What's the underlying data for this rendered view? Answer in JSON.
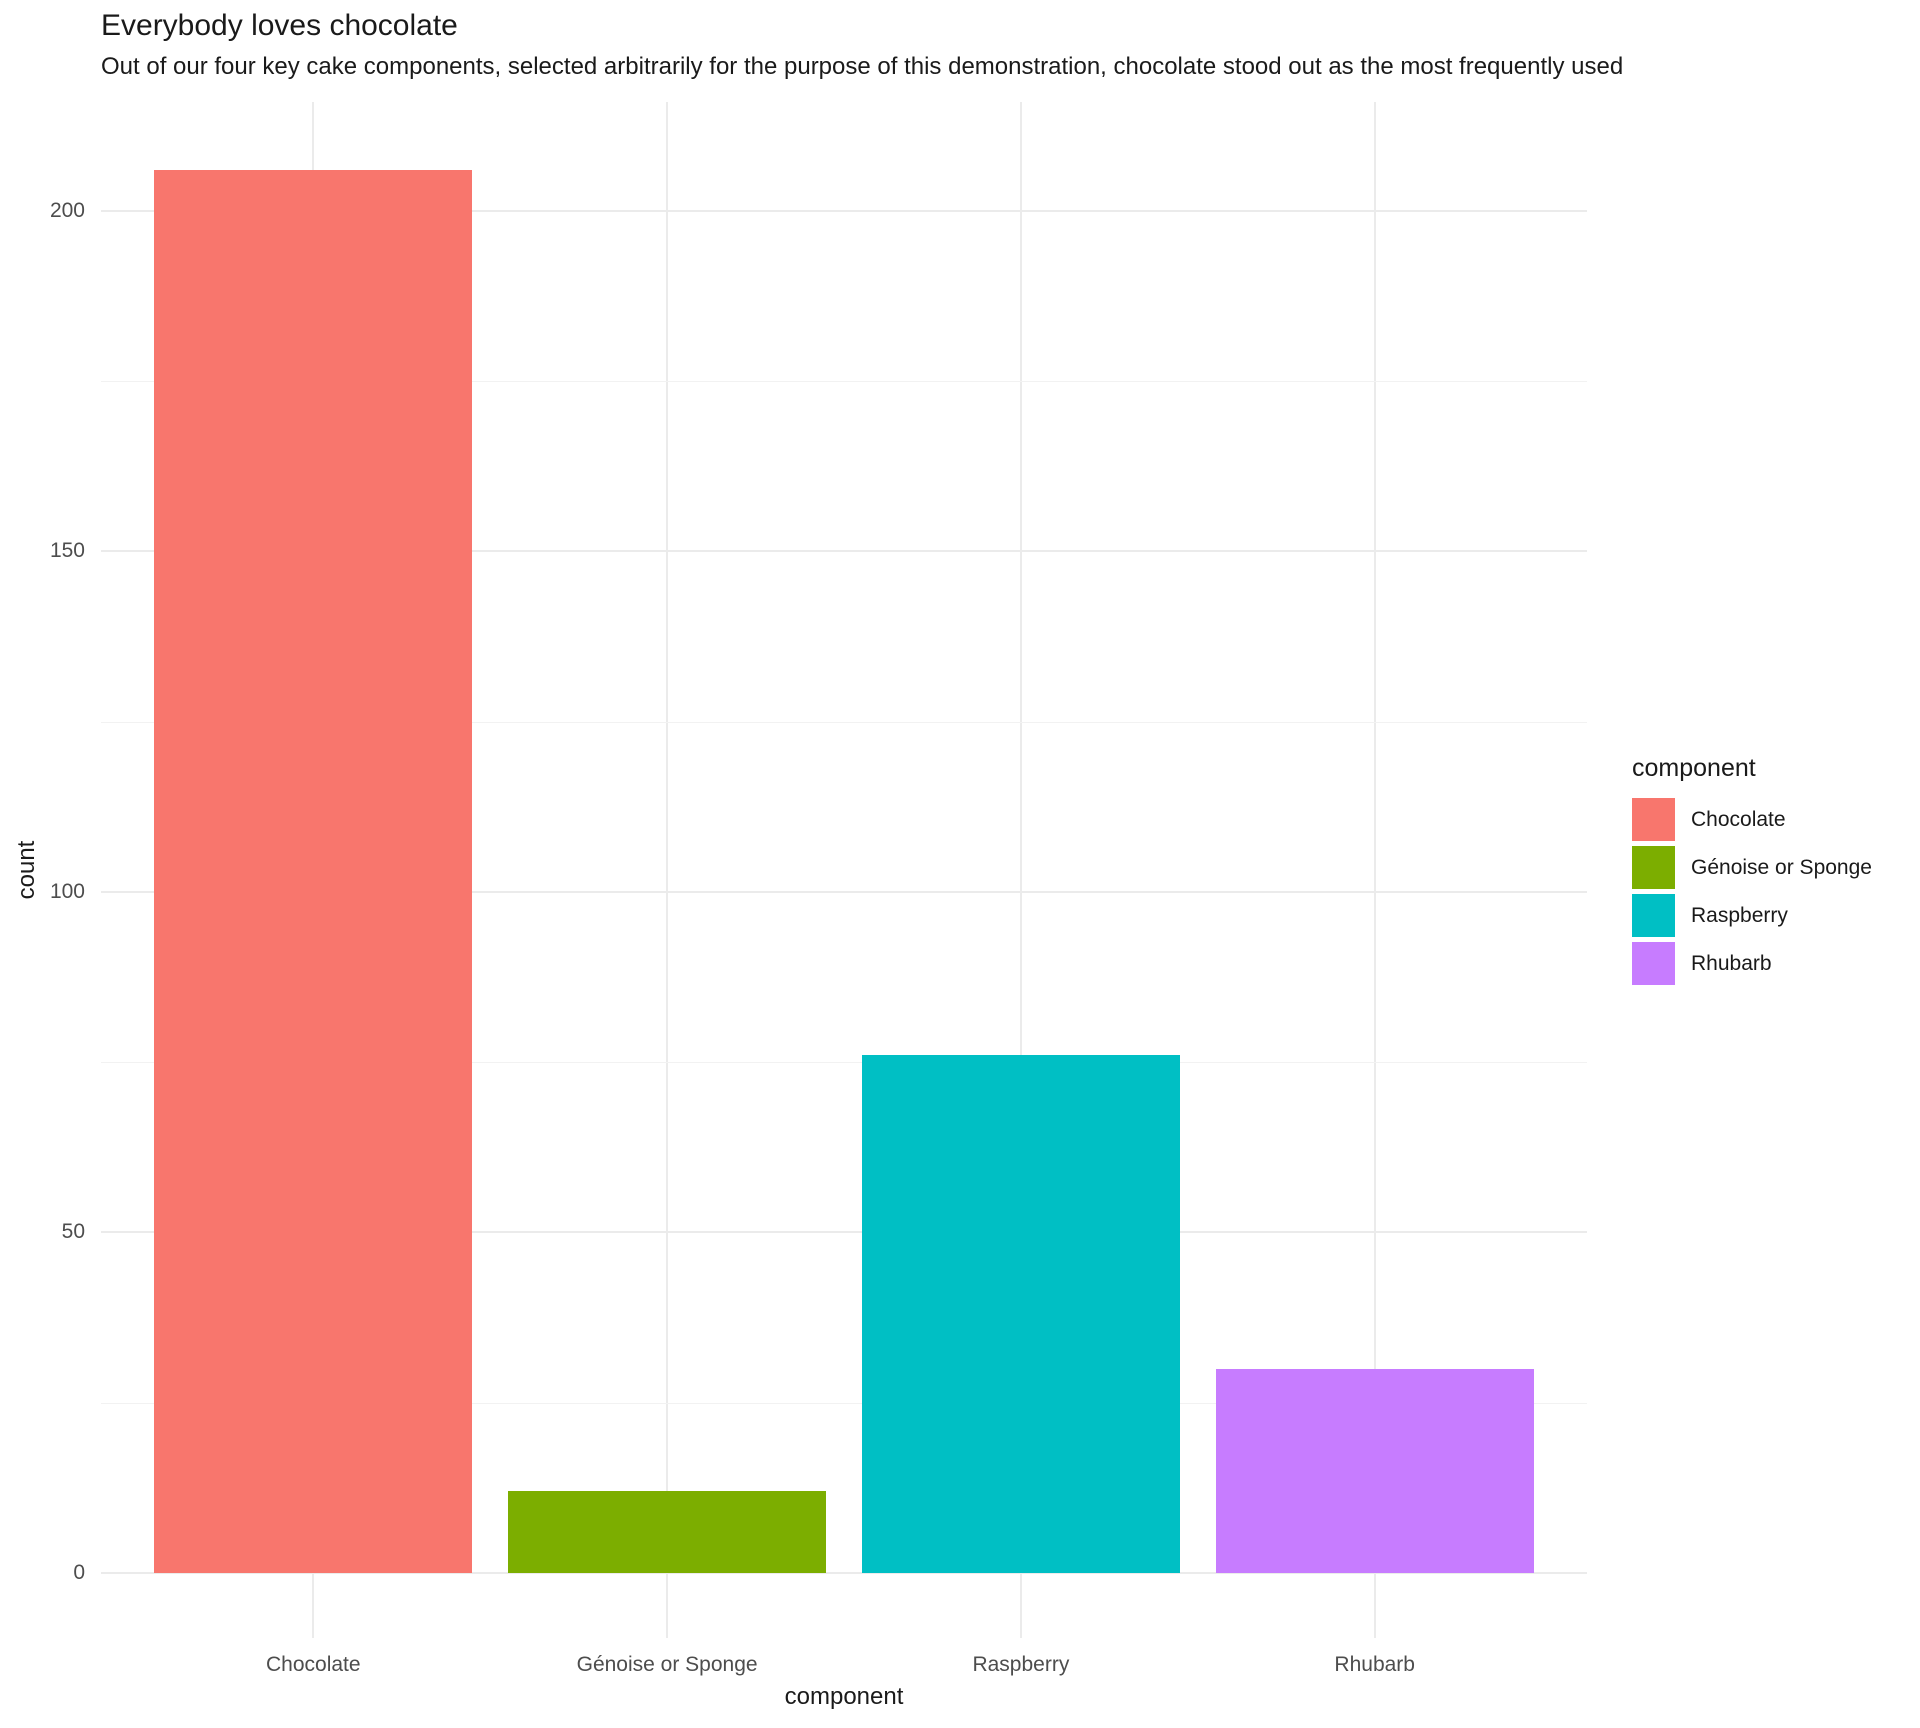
{
  "title": "Everybody loves chocolate",
  "subtitle": "Out of our four key cake components, selected arbitrarily for the purpose of this demonstration, chocolate stood out as the most frequently used",
  "chart_data": {
    "type": "bar",
    "title": "Everybody loves chocolate",
    "subtitle": "Out of our four key cake components, selected arbitrarily for the purpose of this demonstration, chocolate stood out as the most frequently used",
    "categories": [
      "Chocolate",
      "Génoise or Sponge",
      "Raspberry",
      "Rhubarb"
    ],
    "values": [
      206,
      12,
      76,
      30
    ],
    "colors": [
      "#F8766D",
      "#7CAE00",
      "#00BFC4",
      "#C77CFF"
    ],
    "xlabel": "component",
    "ylabel": "count",
    "ylim": [
      0,
      216
    ],
    "yticks": [
      0,
      50,
      100,
      150,
      200
    ],
    "yminor": [
      25,
      75,
      125,
      175
    ],
    "grid": true,
    "background": "#ffffff",
    "gridline_color_major": "#ebebeb",
    "gridline_color_minor": "#f2f2f2",
    "axis_text_color": "#4d4d4d",
    "text_color": "#1a1a1a",
    "legend": {
      "title": "component",
      "position": "right",
      "entries": [
        {
          "label": "Chocolate",
          "color": "#F8766D"
        },
        {
          "label": "Génoise or Sponge",
          "color": "#7CAE00"
        },
        {
          "label": "Raspberry",
          "color": "#00BFC4"
        },
        {
          "label": "Rhubarb",
          "color": "#C77CFF"
        }
      ]
    }
  }
}
